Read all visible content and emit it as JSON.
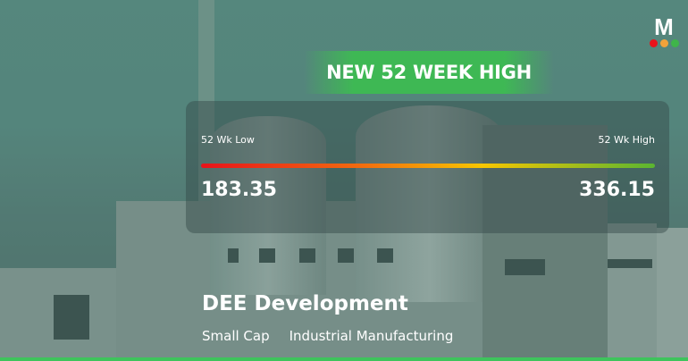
{
  "badge": "NEW 52 WEEK HIGH",
  "range": {
    "low_label": "52 Wk Low",
    "high_label": "52 Wk High",
    "low_value": "183.35",
    "high_value": "336.15"
  },
  "company": {
    "name": "DEE Development",
    "cap": "Small Cap",
    "sector": "Industrial Manufacturing"
  },
  "logo": {
    "letter": "M",
    "dot_colors": [
      "#e8131b",
      "#f2a33a",
      "#3fb54a"
    ]
  },
  "colors": {
    "accent": "#3ec45c"
  }
}
